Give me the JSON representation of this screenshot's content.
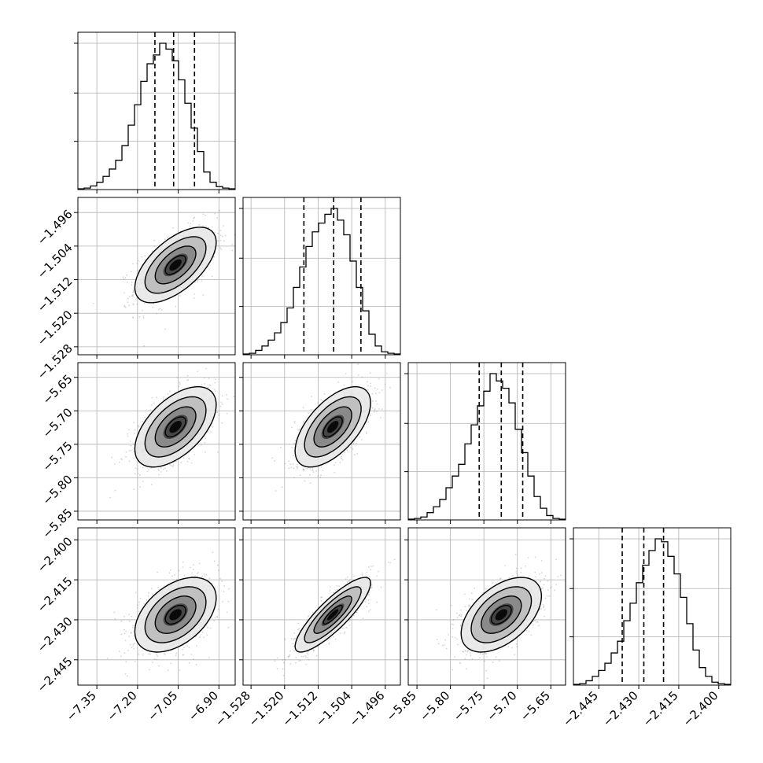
{
  "chart_data": {
    "type": "corner",
    "params": [
      {
        "range": [
          -7.42,
          -6.84
        ],
        "ticks": [
          -7.35,
          -7.2,
          -7.05,
          -6.9
        ],
        "tick_labels": [
          "−7.35",
          "−7.20",
          "−7.05",
          "−6.90"
        ]
      },
      {
        "range": [
          -1.5299,
          -1.4924
        ],
        "ticks": [
          -1.528,
          -1.52,
          -1.512,
          -1.504,
          -1.496
        ],
        "tick_labels": [
          "−1.528",
          "−1.520",
          "−1.512",
          "−1.504",
          "−1.496"
        ]
      },
      {
        "range": [
          -5.863,
          -5.628
        ],
        "ticks": [
          -5.85,
          -5.8,
          -5.75,
          -5.7,
          -5.65
        ],
        "tick_labels": [
          "−5.85",
          "−5.80",
          "−5.75",
          "−5.70",
          "−5.65"
        ]
      },
      {
        "range": [
          -2.4545,
          -2.3955
        ],
        "ticks": [
          -2.445,
          -2.43,
          -2.415,
          -2.4
        ],
        "tick_labels": [
          "−2.445",
          "−2.430",
          "−2.415",
          "−2.400"
        ]
      }
    ],
    "quantiles": [
      [
        -7.136,
        -7.067,
        -6.99
      ],
      [
        -1.5154,
        -1.5083,
        -1.5018
      ],
      [
        -5.757,
        -5.724,
        -5.692
      ],
      [
        -2.4362,
        -2.4281,
        -2.4207
      ]
    ],
    "histograms": [
      [
        0.005,
        0.01,
        0.025,
        0.05,
        0.09,
        0.14,
        0.2,
        0.3,
        0.44,
        0.58,
        0.74,
        0.86,
        0.92,
        1.0,
        0.96,
        0.88,
        0.75,
        0.59,
        0.42,
        0.26,
        0.12,
        0.05,
        0.02,
        0.01,
        0.005
      ],
      [
        0.005,
        0.01,
        0.03,
        0.06,
        0.1,
        0.15,
        0.22,
        0.32,
        0.46,
        0.6,
        0.74,
        0.84,
        0.9,
        0.96,
        1.0,
        0.92,
        0.82,
        0.64,
        0.46,
        0.3,
        0.14,
        0.06,
        0.02,
        0.01,
        0.005
      ],
      [
        0.005,
        0.01,
        0.02,
        0.05,
        0.09,
        0.14,
        0.22,
        0.3,
        0.38,
        0.52,
        0.65,
        0.78,
        0.88,
        1.0,
        0.95,
        0.9,
        0.8,
        0.62,
        0.46,
        0.3,
        0.16,
        0.08,
        0.03,
        0.01,
        0.005
      ],
      [
        0.005,
        0.01,
        0.03,
        0.06,
        0.1,
        0.15,
        0.22,
        0.3,
        0.44,
        0.56,
        0.7,
        0.82,
        0.92,
        1.0,
        0.98,
        0.88,
        0.76,
        0.6,
        0.42,
        0.24,
        0.12,
        0.06,
        0.02,
        0.01,
        0.005
      ]
    ],
    "pair_stats": [
      {
        "row": 1,
        "col": 0,
        "mean": [
          -7.06,
          -1.5085
        ],
        "sd": [
          0.075,
          0.0045
        ],
        "rho": 0.6
      },
      {
        "row": 2,
        "col": 0,
        "mean": [
          -7.06,
          -5.724
        ],
        "sd": [
          0.075,
          0.03
        ],
        "rho": 0.55
      },
      {
        "row": 2,
        "col": 1,
        "mean": [
          -1.5085,
          -5.724
        ],
        "sd": [
          0.0045,
          0.03
        ],
        "rho": 0.6
      },
      {
        "row": 3,
        "col": 0,
        "mean": [
          -7.06,
          -2.4281
        ],
        "sd": [
          0.075,
          0.007
        ],
        "rho": 0.45
      },
      {
        "row": 3,
        "col": 1,
        "mean": [
          -1.5085,
          -2.4281
        ],
        "sd": [
          0.0045,
          0.007
        ],
        "rho": 0.85
      },
      {
        "row": 3,
        "col": 2,
        "mean": [
          -5.724,
          -2.4281
        ],
        "sd": [
          0.03,
          0.007
        ],
        "rho": 0.5
      }
    ],
    "contour_levels_sigma": [
      0.5,
      1.0,
      1.5,
      2.0
    ],
    "colors": {
      "line": "#000000",
      "grid": "#b0b0b0",
      "scatter": "#888888",
      "density_max": "#000000",
      "density_min": "#ffffff"
    },
    "grid": true
  }
}
